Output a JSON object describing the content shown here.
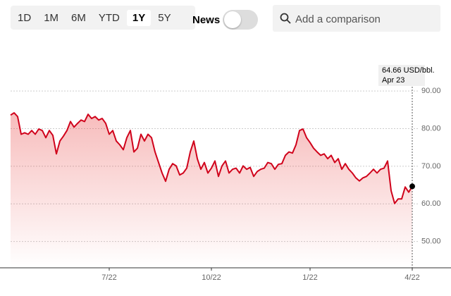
{
  "toolbar": {
    "ranges": [
      "1D",
      "1M",
      "6M",
      "YTD",
      "1Y",
      "5Y"
    ],
    "selected": 4,
    "news": "News",
    "search": "Add a comparison"
  },
  "chart_data": {
    "type": "line",
    "color": "#d0021b",
    "categories": [
      null,
      null,
      null,
      null,
      null,
      null,
      null,
      null,
      null,
      null,
      null,
      null,
      null,
      null,
      null,
      null,
      null,
      null,
      null,
      null,
      null,
      null,
      null,
      null,
      null,
      null,
      null,
      null,
      "7/22",
      null,
      null,
      null,
      null,
      null,
      null,
      null,
      null,
      null,
      null,
      null,
      null,
      null,
      null,
      null,
      null,
      null,
      null,
      null,
      null,
      null,
      null,
      null,
      null,
      null,
      null,
      null,
      null,
      "10/22",
      null,
      null,
      null,
      null,
      null,
      null,
      null,
      null,
      null,
      null,
      null,
      null,
      null,
      null,
      null,
      null,
      null,
      null,
      null,
      null,
      null,
      null,
      null,
      null,
      null,
      null,
      null,
      "1/22",
      null,
      null,
      null,
      null,
      null,
      null,
      null,
      null,
      null,
      null,
      null,
      null,
      null,
      null,
      null,
      null,
      null,
      null,
      null,
      null,
      null,
      null,
      null,
      null,
      null,
      null,
      null,
      null,
      "4/22"
    ],
    "values": [
      83.6,
      84.2,
      83.2,
      78.5,
      78.9,
      78.5,
      79.5,
      78.5,
      79.9,
      79.5,
      77.6,
      79.5,
      78.2,
      73.3,
      76.7,
      78.0,
      79.5,
      81.9,
      80.4,
      81.4,
      82.3,
      81.9,
      83.8,
      82.7,
      83.2,
      82.3,
      82.7,
      81.4,
      78.5,
      79.5,
      76.7,
      75.7,
      74.4,
      77.6,
      79.5,
      73.8,
      74.8,
      78.5,
      76.7,
      78.5,
      77.6,
      73.8,
      71.0,
      68.2,
      66.0,
      69.2,
      70.7,
      70.1,
      67.7,
      68.2,
      69.5,
      73.8,
      76.7,
      72.0,
      69.2,
      71.0,
      68.2,
      69.5,
      71.4,
      67.3,
      70.1,
      71.4,
      68.2,
      69.2,
      69.5,
      68.2,
      70.1,
      69.2,
      69.7,
      67.3,
      68.6,
      69.2,
      69.5,
      71.0,
      70.7,
      69.2,
      70.5,
      70.7,
      72.9,
      73.8,
      73.5,
      75.7,
      79.5,
      79.9,
      77.6,
      76.3,
      74.8,
      73.8,
      72.9,
      73.3,
      72.0,
      72.9,
      71.0,
      72.0,
      69.2,
      70.7,
      69.2,
      68.2,
      66.9,
      66.1,
      66.9,
      67.3,
      68.2,
      69.2,
      68.2,
      69.2,
      69.5,
      71.4,
      63.5,
      60.1,
      61.3,
      61.3,
      64.5,
      63.1,
      64.66
    ],
    "ylim": [
      43,
      96.4
    ],
    "yticks": [
      {
        "value": 50,
        "label": "50.00"
      },
      {
        "value": 60,
        "label": "60.00"
      },
      {
        "value": 70,
        "label": "70.00"
      },
      {
        "value": 80,
        "label": "80.00"
      },
      {
        "value": 90,
        "label": "90.00"
      }
    ],
    "grid": true,
    "annotation": {
      "value_label": "64.66 USD/bbl.",
      "date": "Apr 23"
    }
  }
}
